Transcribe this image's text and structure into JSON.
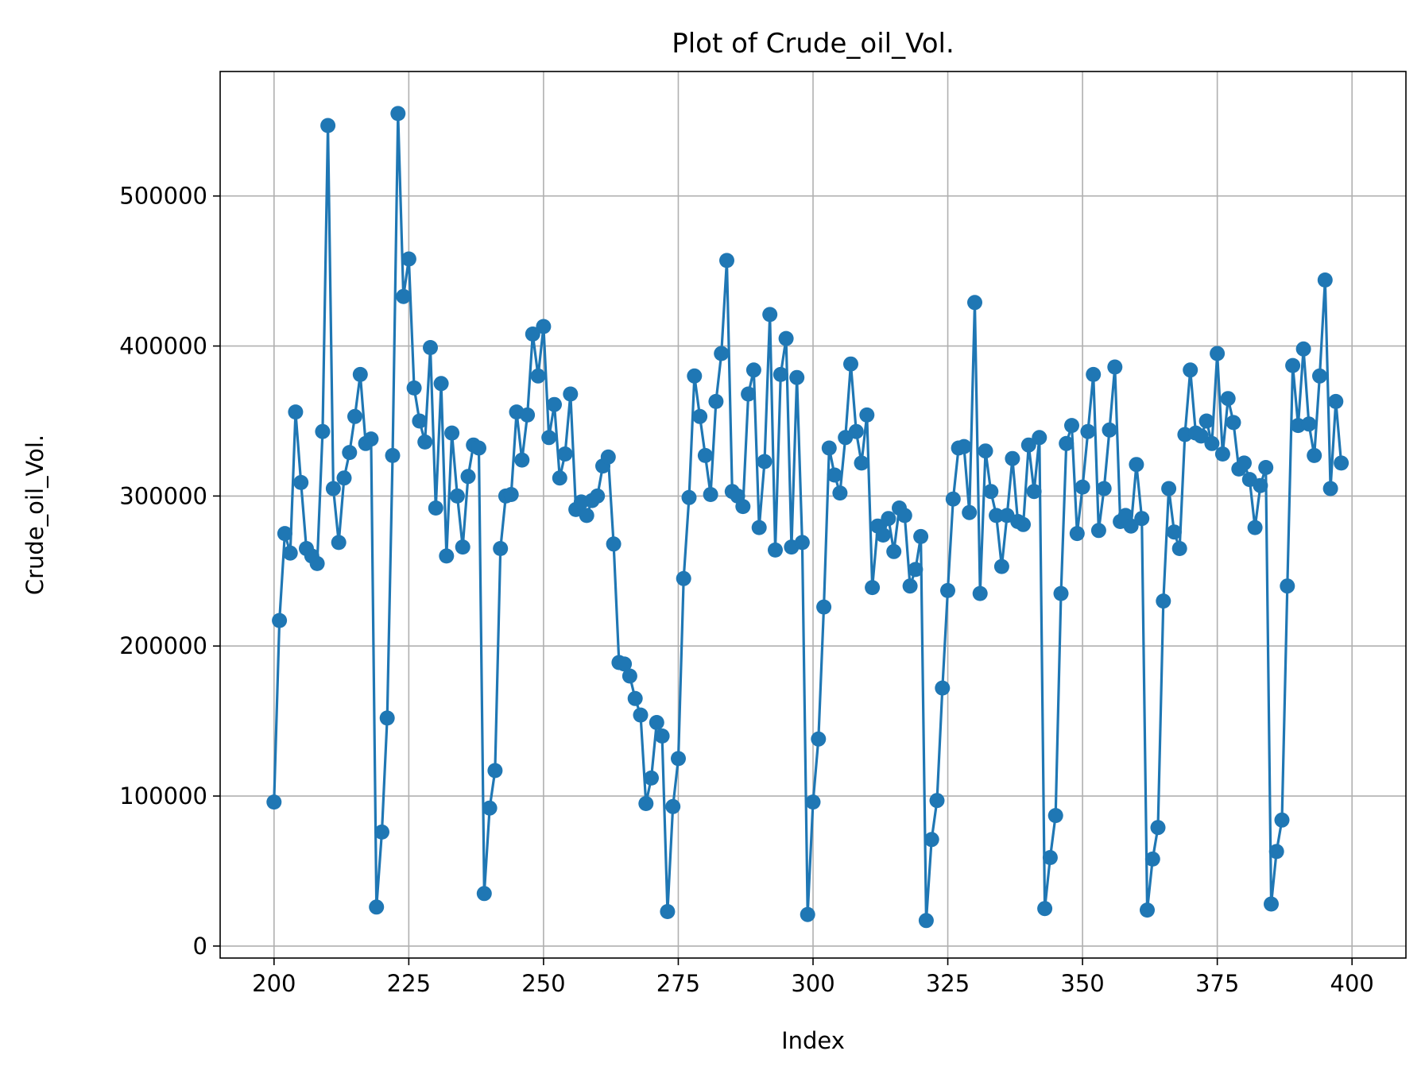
{
  "chart_data": {
    "type": "line",
    "title": "Plot of Crude_oil_Vol.",
    "xlabel": "Index",
    "ylabel": "Crude_oil_Vol.",
    "xlim": [
      190,
      410
    ],
    "ylim": [
      -8000,
      583000
    ],
    "xticks": [
      200,
      225,
      250,
      275,
      300,
      325,
      350,
      375,
      400
    ],
    "yticks": [
      0,
      100000,
      200000,
      300000,
      400000,
      500000
    ],
    "grid": true,
    "color": "#1f77b4",
    "marker": "circle",
    "series": [
      {
        "x_start": 200,
        "values": [
          96000,
          217000,
          275000,
          262000,
          356000,
          309000,
          265000,
          260000,
          255000,
          343000,
          547000,
          305000,
          269000,
          312000,
          329000,
          353000,
          381000,
          335000,
          338000,
          26000,
          76000,
          152000,
          327000,
          555000,
          433000,
          458000,
          372000,
          350000,
          336000,
          399000,
          292000,
          375000,
          260000,
          342000,
          300000,
          266000,
          313000,
          334000,
          332000,
          35000,
          92000,
          117000,
          265000,
          300000,
          301000,
          356000,
          324000,
          354000,
          408000,
          380000,
          413000,
          339000,
          361000,
          312000,
          328000,
          368000,
          291000,
          296000,
          287000,
          297000,
          300000,
          320000,
          326000,
          268000,
          189000,
          188000,
          180000,
          165000,
          154000,
          95000,
          112000,
          149000,
          140000,
          23000,
          93000,
          125000,
          245000,
          299000,
          380000,
          353000,
          327000,
          301000,
          363000,
          395000,
          457000,
          303000,
          300000,
          293000,
          368000,
          384000,
          279000,
          323000,
          421000,
          264000,
          381000,
          405000,
          266000,
          379000,
          269000,
          21000,
          96000,
          138000,
          226000,
          332000,
          314000,
          302000,
          339000,
          388000,
          343000,
          322000,
          354000,
          239000,
          280000,
          274000,
          285000,
          263000,
          292000,
          287000,
          240000,
          251000,
          273000,
          17000,
          71000,
          97000,
          172000,
          237000,
          298000,
          332000,
          333000,
          289000,
          429000,
          235000,
          330000,
          303000,
          287000,
          253000,
          287000,
          325000,
          283000,
          281000,
          334000,
          303000,
          339000,
          25000,
          59000,
          87000,
          235000,
          335000,
          347000,
          275000,
          306000,
          343000,
          381000,
          277000,
          305000,
          344000,
          386000,
          283000,
          287000,
          280000,
          321000,
          285000,
          24000,
          58000,
          79000,
          230000,
          305000,
          276000,
          265000,
          341000,
          384000,
          342000,
          340000,
          350000,
          335000,
          395000,
          328000,
          365000,
          349000,
          318000,
          322000,
          311000,
          279000,
          307000,
          319000,
          28000,
          63000,
          84000,
          240000,
          387000,
          347000,
          398000,
          348000,
          327000,
          380000,
          444000,
          305000,
          363000,
          322000
        ]
      }
    ]
  }
}
